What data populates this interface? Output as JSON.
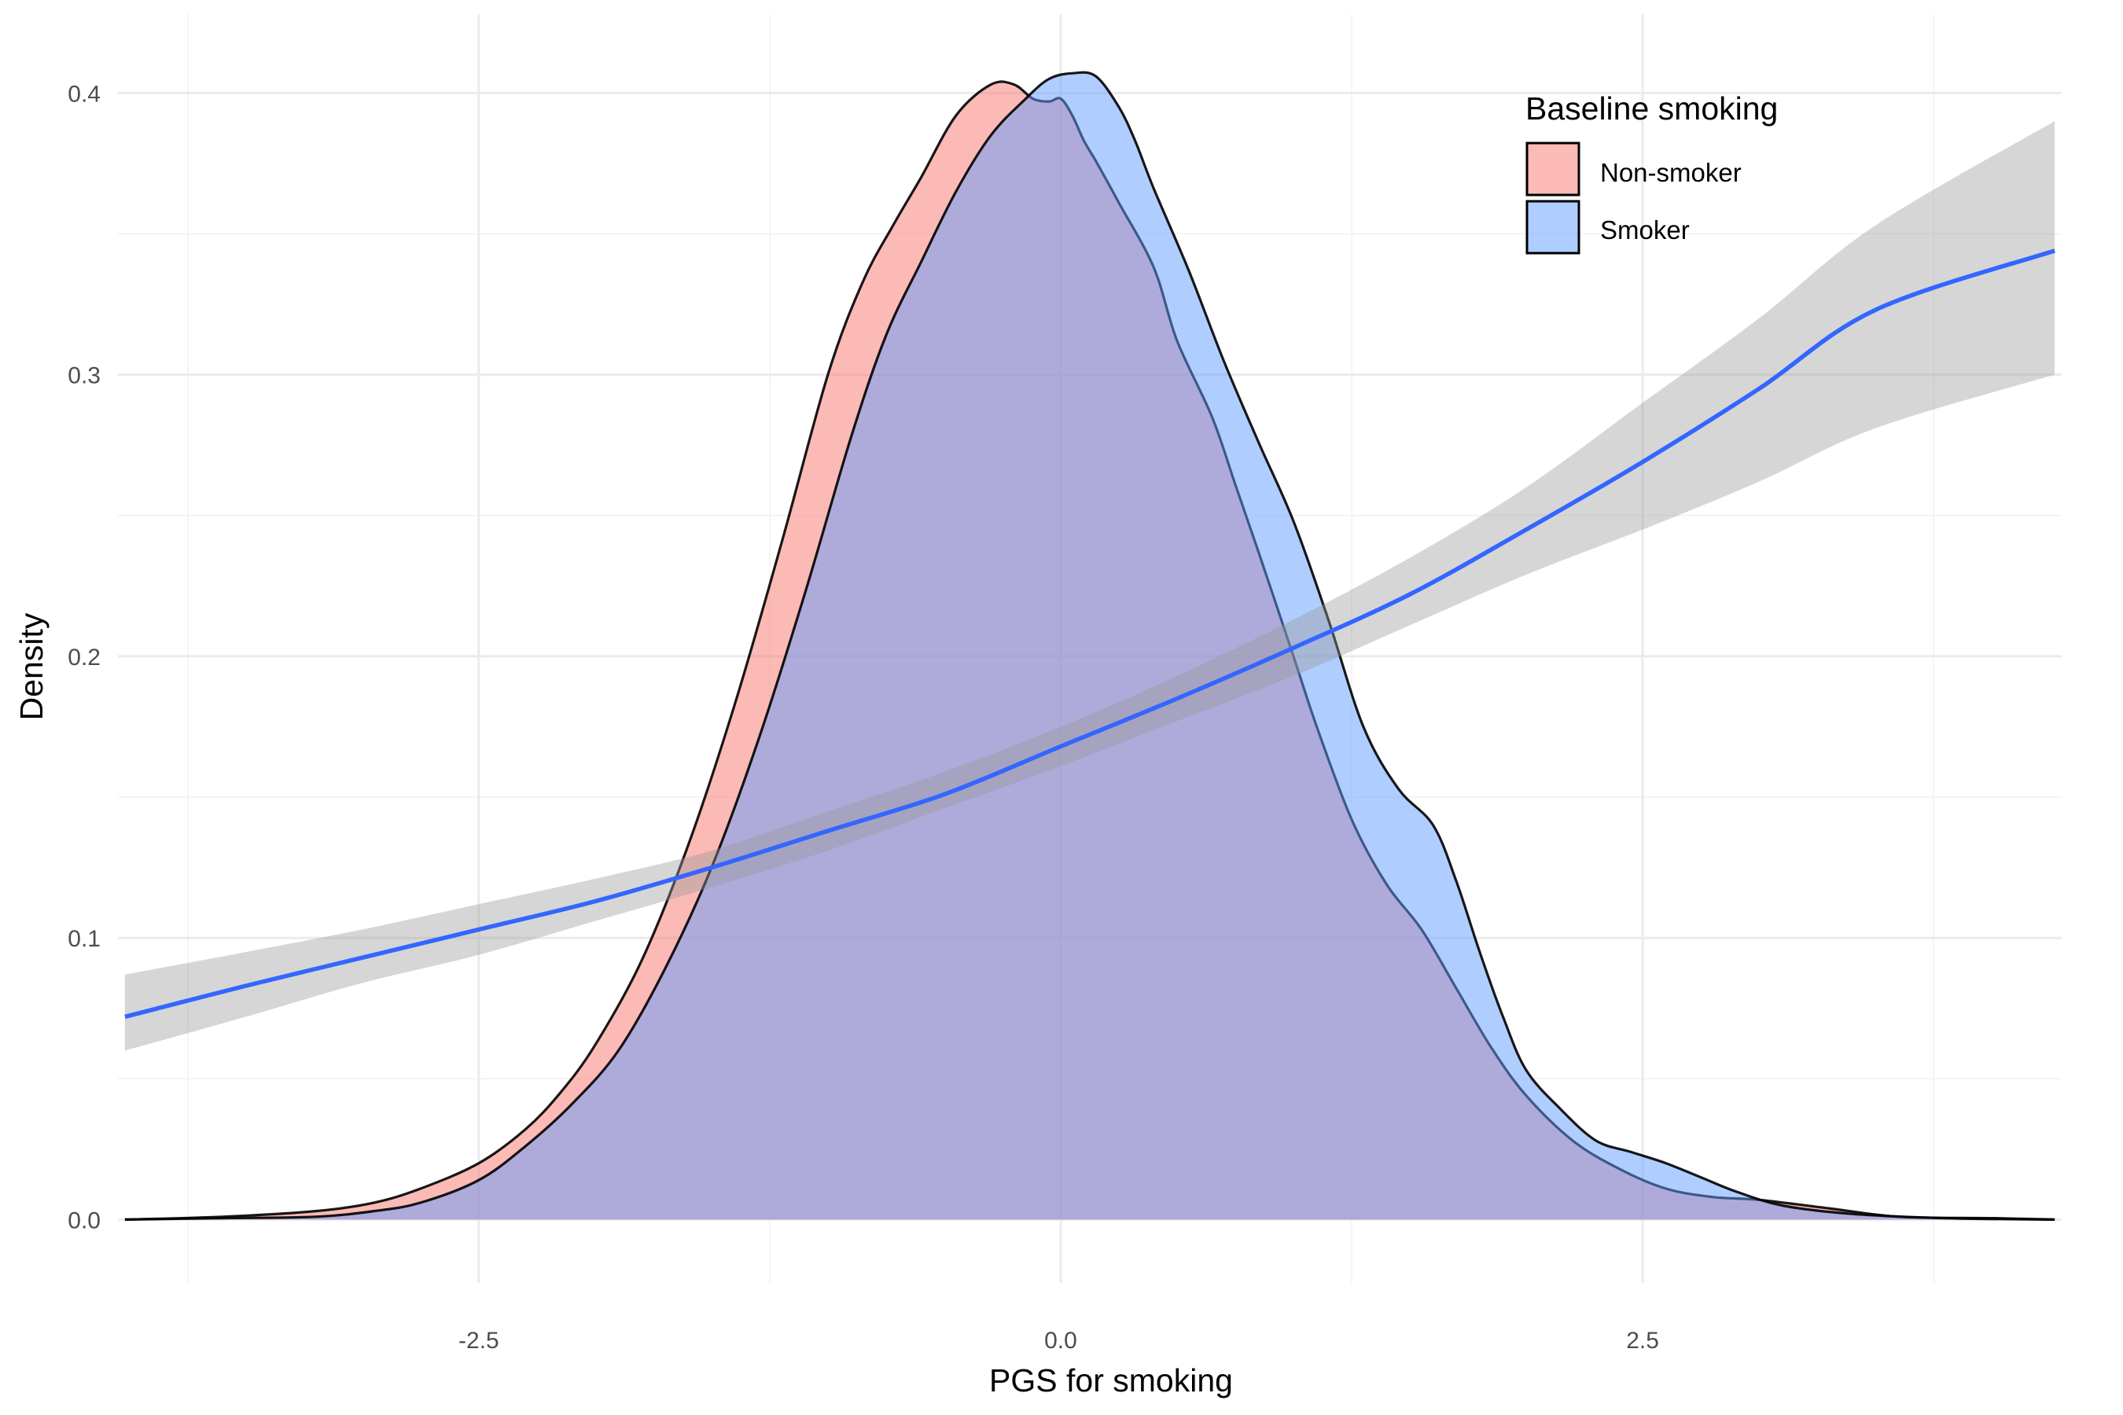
{
  "chart_data": {
    "type": "area",
    "xlabel": "PGS for smoking",
    "ylabel": "Density",
    "xlim": [
      -4.05,
      4.3
    ],
    "ylim": [
      -0.0225,
      0.428
    ],
    "x_ticks": [
      -2.5,
      0.0,
      2.5
    ],
    "x_tick_labels": [
      "-2.5",
      "0.0",
      "2.5"
    ],
    "y_ticks": [
      0.0,
      0.1,
      0.2,
      0.3,
      0.4
    ],
    "y_tick_labels": [
      "0.0",
      "0.1",
      "0.2",
      "0.3",
      "0.4"
    ],
    "x_minor": [
      -3.75,
      -1.25,
      1.25,
      3.75
    ],
    "y_minor": [
      0.05,
      0.15,
      0.25,
      0.35
    ],
    "legend": {
      "title": "Baseline smoking",
      "position": "top-right",
      "entries": [
        {
          "label": "Non-smoker",
          "color": "#F8766D"
        },
        {
          "label": "Smoker",
          "color": "#619CFF"
        }
      ]
    },
    "series": [
      {
        "name": "Non-smoker",
        "kind": "density",
        "fill": "#F8766D",
        "fill_opacity": 0.5,
        "x": [
          -4.02,
          -3.6,
          -3.2,
          -2.95,
          -2.75,
          -2.5,
          -2.3,
          -2.15,
          -2.0,
          -1.8,
          -1.6,
          -1.4,
          -1.2,
          -1.0,
          -0.85,
          -0.72,
          -0.6,
          -0.45,
          -0.3,
          -0.2,
          -0.12,
          -0.05,
          0.0,
          0.05,
          0.1,
          0.15,
          0.25,
          0.4,
          0.5,
          0.65,
          0.75,
          0.85,
          1.0,
          1.1,
          1.25,
          1.4,
          1.55,
          1.7,
          1.85,
          2.0,
          2.2,
          2.4,
          2.6,
          2.8,
          3.0,
          3.3,
          3.6,
          4.0,
          4.27
        ],
        "values": [
          0.0,
          0.001,
          0.003,
          0.006,
          0.011,
          0.02,
          0.032,
          0.045,
          0.062,
          0.092,
          0.133,
          0.183,
          0.24,
          0.3,
          0.333,
          0.353,
          0.37,
          0.392,
          0.403,
          0.403,
          0.398,
          0.397,
          0.398,
          0.392,
          0.383,
          0.376,
          0.361,
          0.338,
          0.312,
          0.285,
          0.261,
          0.237,
          0.2,
          0.175,
          0.142,
          0.119,
          0.103,
          0.082,
          0.061,
          0.044,
          0.028,
          0.018,
          0.011,
          0.008,
          0.007,
          0.004,
          0.001,
          0.0005,
          0.0
        ]
      },
      {
        "name": "Smoker",
        "kind": "density",
        "fill": "#619CFF",
        "fill_opacity": 0.5,
        "x": [
          -4.02,
          -3.6,
          -3.2,
          -2.95,
          -2.75,
          -2.5,
          -2.3,
          -2.1,
          -1.9,
          -1.7,
          -1.5,
          -1.3,
          -1.1,
          -0.9,
          -0.75,
          -0.6,
          -0.45,
          -0.3,
          -0.15,
          -0.05,
          0.05,
          0.15,
          0.25,
          0.32,
          0.4,
          0.55,
          0.7,
          0.85,
          1.0,
          1.15,
          1.3,
          1.45,
          1.6,
          1.7,
          1.8,
          1.9,
          2.0,
          2.15,
          2.3,
          2.45,
          2.6,
          2.75,
          2.9,
          3.1,
          3.4,
          3.8,
          4.27
        ],
        "values": [
          0.0,
          0.0005,
          0.001,
          0.003,
          0.006,
          0.014,
          0.026,
          0.041,
          0.06,
          0.089,
          0.125,
          0.17,
          0.222,
          0.278,
          0.314,
          0.34,
          0.365,
          0.385,
          0.398,
          0.405,
          0.407,
          0.406,
          0.395,
          0.383,
          0.366,
          0.337,
          0.305,
          0.276,
          0.248,
          0.213,
          0.175,
          0.153,
          0.14,
          0.12,
          0.095,
          0.072,
          0.053,
          0.039,
          0.028,
          0.024,
          0.02,
          0.015,
          0.01,
          0.005,
          0.002,
          0.0005,
          0.0
        ]
      },
      {
        "name": "smooth",
        "kind": "line",
        "color": "#3366FF",
        "ribbon_color": "#999999",
        "x": [
          -4.02,
          -3.5,
          -3.0,
          -2.5,
          -2.0,
          -1.5,
          -1.0,
          -0.5,
          0.0,
          0.5,
          1.0,
          1.5,
          2.0,
          2.5,
          3.0,
          3.5,
          4.27
        ],
        "values": [
          0.072,
          0.083,
          0.093,
          0.103,
          0.113,
          0.125,
          0.138,
          0.151,
          0.168,
          0.185,
          0.203,
          0.222,
          0.245,
          0.269,
          0.295,
          0.323,
          0.344
        ],
        "ci_low": [
          0.06,
          0.072,
          0.084,
          0.094,
          0.106,
          0.118,
          0.131,
          0.146,
          0.161,
          0.177,
          0.193,
          0.211,
          0.229,
          0.245,
          0.262,
          0.281,
          0.3
        ],
        "ci_high": [
          0.087,
          0.095,
          0.103,
          0.112,
          0.121,
          0.131,
          0.145,
          0.159,
          0.175,
          0.193,
          0.213,
          0.235,
          0.26,
          0.29,
          0.32,
          0.353,
          0.39
        ]
      }
    ]
  }
}
